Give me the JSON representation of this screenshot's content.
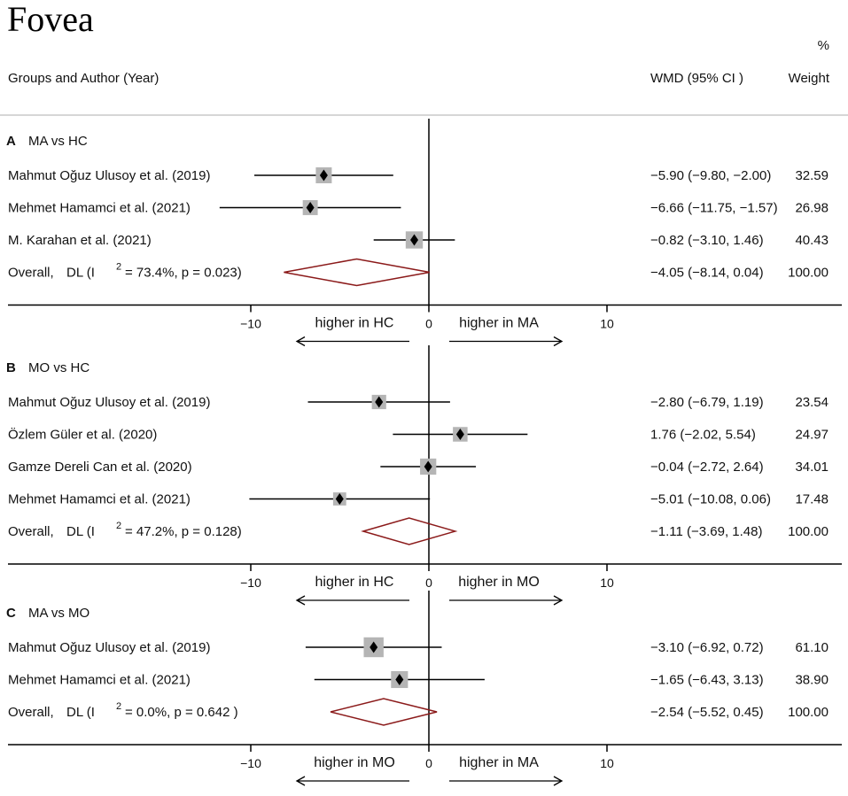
{
  "chart_data": {
    "type": "forest",
    "title": "Fovea",
    "header": {
      "weight_pct": "%",
      "group_author": "Groups and Author (Year)",
      "wmd": "WMD (95% CI  )",
      "weight": "Weight"
    },
    "xaxis": {
      "range": [
        -10,
        10
      ],
      "ticks": [
        "−10",
        "0",
        "10"
      ],
      "tick_values": [
        -10,
        0,
        10
      ]
    },
    "panels": [
      {
        "letter": "A",
        "name": "MA vs HC",
        "studies": [
          {
            "label": "Mahmut Oğuz Ulusoy et al. (2019)",
            "wmd": -5.9,
            "lo": -9.8,
            "hi": -2.0,
            "weight": 32.59,
            "ci_text": "−5.90 (−9.80, −2.00)",
            "weight_text": "32.59"
          },
          {
            "label": "Mehmet Hamamci et al. (2021)",
            "wmd": -6.66,
            "lo": -11.75,
            "hi": -1.57,
            "weight": 26.98,
            "ci_text": "−6.66 (−11.75, −1.57)",
            "weight_text": "26.98"
          },
          {
            "label": "M. Karahan et al. (2021)",
            "wmd": -0.82,
            "lo": -3.1,
            "hi": 1.46,
            "weight": 40.43,
            "ci_text": "−0.82 (−3.10, 1.46)",
            "weight_text": "40.43"
          }
        ],
        "overall": {
          "label": "Overall,",
          "het_prefix": "DL (I",
          "het_sup": "2",
          "het_suffix": "= 73.4%, p = 0.023)",
          "wmd": -4.05,
          "lo": -8.14,
          "hi": 0.04,
          "ci_text": "−4.05 (−8.14, 0.04)",
          "weight_text": "100.00"
        },
        "left_label": "higher in HC",
        "right_label": "higher in MA"
      },
      {
        "letter": "B",
        "name": "MO vs HC",
        "studies": [
          {
            "label": "Mahmut Oğuz Ulusoy et al. (2019)",
            "wmd": -2.8,
            "lo": -6.79,
            "hi": 1.19,
            "weight": 23.54,
            "ci_text": "−2.80 (−6.79, 1.19)",
            "weight_text": "23.54"
          },
          {
            "label": "Özlem Güler et al. (2020)",
            "wmd": 1.76,
            "lo": -2.02,
            "hi": 5.54,
            "weight": 24.97,
            "ci_text": "1.76 (−2.02, 5.54)",
            "weight_text": "24.97"
          },
          {
            "label": "Gamze Dereli Can et al. (2020)",
            "wmd": -0.04,
            "lo": -2.72,
            "hi": 2.64,
            "weight": 34.01,
            "ci_text": "−0.04 (−2.72, 2.64)",
            "weight_text": "34.01"
          },
          {
            "label": "Mehmet Hamamci et al. (2021)",
            "wmd": -5.01,
            "lo": -10.08,
            "hi": 0.06,
            "weight": 17.48,
            "ci_text": "−5.01 (−10.08, 0.06)",
            "weight_text": "17.48"
          }
        ],
        "overall": {
          "label": "Overall,",
          "het_prefix": "DL (I",
          "het_sup": "2",
          "het_suffix": "= 47.2%, p = 0.128)",
          "wmd": -1.11,
          "lo": -3.69,
          "hi": 1.48,
          "ci_text": "−1.11 (−3.69, 1.48)",
          "weight_text": "100.00"
        },
        "left_label": "higher in HC",
        "right_label": "higher in MO"
      },
      {
        "letter": "C",
        "name": "MA vs MO",
        "studies": [
          {
            "label": "Mahmut Oğuz Ulusoy et al. (2019)",
            "wmd": -3.1,
            "lo": -6.92,
            "hi": 0.72,
            "weight": 61.1,
            "ci_text": "−3.10 (−6.92, 0.72)",
            "weight_text": "61.10"
          },
          {
            "label": "Mehmet Hamamci et al. (2021)",
            "wmd": -1.65,
            "lo": -6.43,
            "hi": 3.13,
            "weight": 38.9,
            "ci_text": "−1.65 (−6.43, 3.13)",
            "weight_text": "38.90"
          }
        ],
        "overall": {
          "label": "Overall,",
          "het_prefix": "DL (I",
          "het_sup": "2",
          "het_suffix": "= 0.0%, p = 0.642 )",
          "wmd": -2.54,
          "lo": -5.52,
          "hi": 0.45,
          "ci_text": "−2.54 (−5.52, 0.45)",
          "weight_text": "100.00"
        },
        "left_label": "higher in MO",
        "right_label": "higher in MA"
      }
    ],
    "colors": {
      "text": "#111111",
      "line": "#000000",
      "weight_box": "#b5b5b5",
      "point": "#000000",
      "diamond": "#8b1a1a",
      "divider": "#c8c8c8"
    }
  }
}
